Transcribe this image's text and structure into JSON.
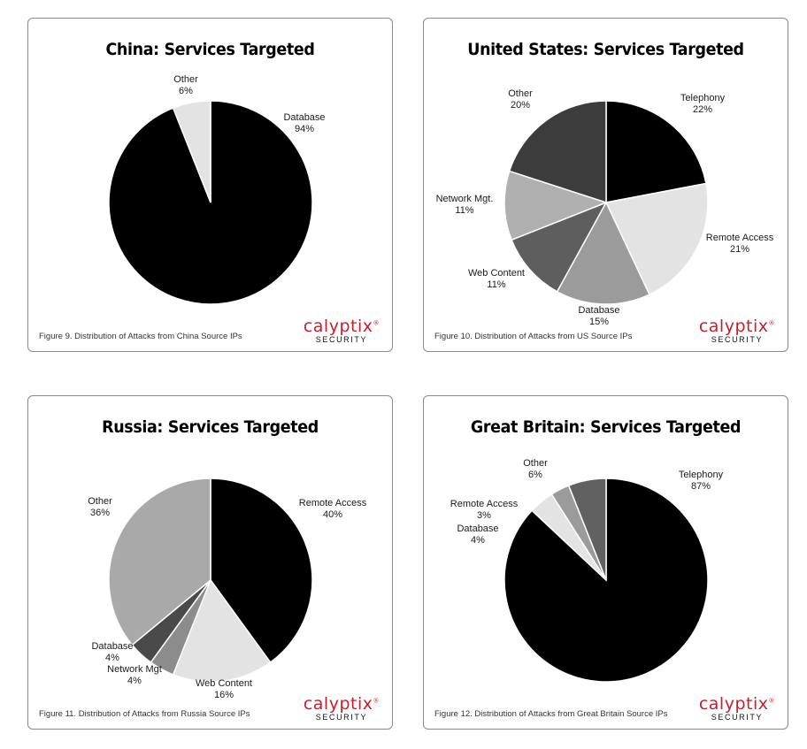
{
  "logo": {
    "brand": "calyptix",
    "sub": "SECURITY"
  },
  "chart_data": [
    {
      "type": "pie",
      "title": "China: Services Targeted",
      "caption": "Figure 9. Distribution of Attacks from China Source IPs",
      "slices": [
        {
          "label": "Database",
          "pct": "94%",
          "value": 94,
          "color": "#000000"
        },
        {
          "label": "Other",
          "pct": "6%",
          "value": 6,
          "color": "#e3e3e3"
        }
      ]
    },
    {
      "type": "pie",
      "title": "United States: Services Targeted",
      "caption": "Figure 10. Distribution of Attacks from US Source IPs",
      "slices": [
        {
          "label": "Telephony",
          "pct": "22%",
          "value": 22,
          "color": "#000000"
        },
        {
          "label": "Remote Access",
          "pct": "21%",
          "value": 21,
          "color": "#e3e3e3"
        },
        {
          "label": "Database",
          "pct": "15%",
          "value": 15,
          "color": "#9b9b9b"
        },
        {
          "label": "Web Content",
          "pct": "11%",
          "value": 11,
          "color": "#5e5e5e"
        },
        {
          "label": "Network Mgt.",
          "pct": "11%",
          "value": 11,
          "color": "#b0b0b0"
        },
        {
          "label": "Other",
          "pct": "20%",
          "value": 20,
          "color": "#3c3c3c"
        }
      ]
    },
    {
      "type": "pie",
      "title": "Russia: Services Targeted",
      "caption": "Figure 11. Distribution of Attacks from Russia Source IPs",
      "slices": [
        {
          "label": "Remote Access",
          "pct": "40%",
          "value": 40,
          "color": "#000000"
        },
        {
          "label": "Web Content",
          "pct": "16%",
          "value": 16,
          "color": "#e3e3e3"
        },
        {
          "label": "Network Mgt",
          "pct": "4%",
          "value": 4,
          "color": "#8c8c8c"
        },
        {
          "label": "Database",
          "pct": "4%",
          "value": 4,
          "color": "#4a4a4a"
        },
        {
          "label": "Other",
          "pct": "36%",
          "value": 36,
          "color": "#a9a9a9"
        }
      ]
    },
    {
      "type": "pie",
      "title": "Great Britain: Services Targeted",
      "caption": "Figure 12. Distribution of Attacks from Great Britain Source IPs",
      "slices": [
        {
          "label": "Telephony",
          "pct": "87%",
          "value": 87,
          "color": "#000000"
        },
        {
          "label": "Database",
          "pct": "4%",
          "value": 4,
          "color": "#e3e3e3"
        },
        {
          "label": "Remote Access",
          "pct": "3%",
          "value": 3,
          "color": "#9b9b9b"
        },
        {
          "label": "Other",
          "pct": "6%",
          "value": 6,
          "color": "#616161"
        }
      ]
    }
  ]
}
